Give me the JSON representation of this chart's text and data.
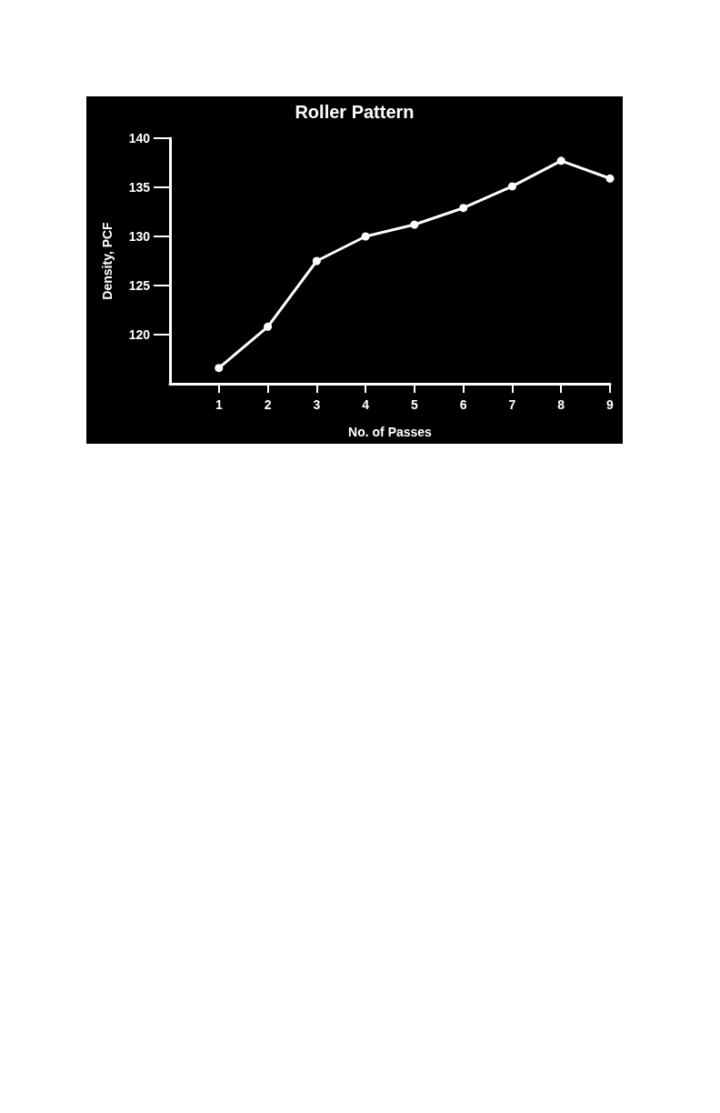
{
  "chart_data": {
    "type": "line",
    "title": "Roller Pattern",
    "xlabel": "No. of Passes",
    "ylabel": "Density, PCF",
    "x": [
      1,
      2,
      3,
      4,
      5,
      6,
      7,
      8,
      9
    ],
    "series": [
      {
        "color": "#ffffff",
        "values": [
          116.6,
          120.8,
          127.5,
          130,
          131.2,
          132.9,
          135.1,
          137.7,
          135.9
        ]
      }
    ],
    "xlim": [
      0,
      9
    ],
    "xticks": [
      1,
      2,
      3,
      4,
      5,
      6,
      7,
      8,
      9
    ],
    "ylim": [
      115,
      140
    ],
    "yticks": [
      120,
      125,
      130,
      135,
      140
    ],
    "grid": false,
    "marker": "circle",
    "line_style": "solid"
  }
}
